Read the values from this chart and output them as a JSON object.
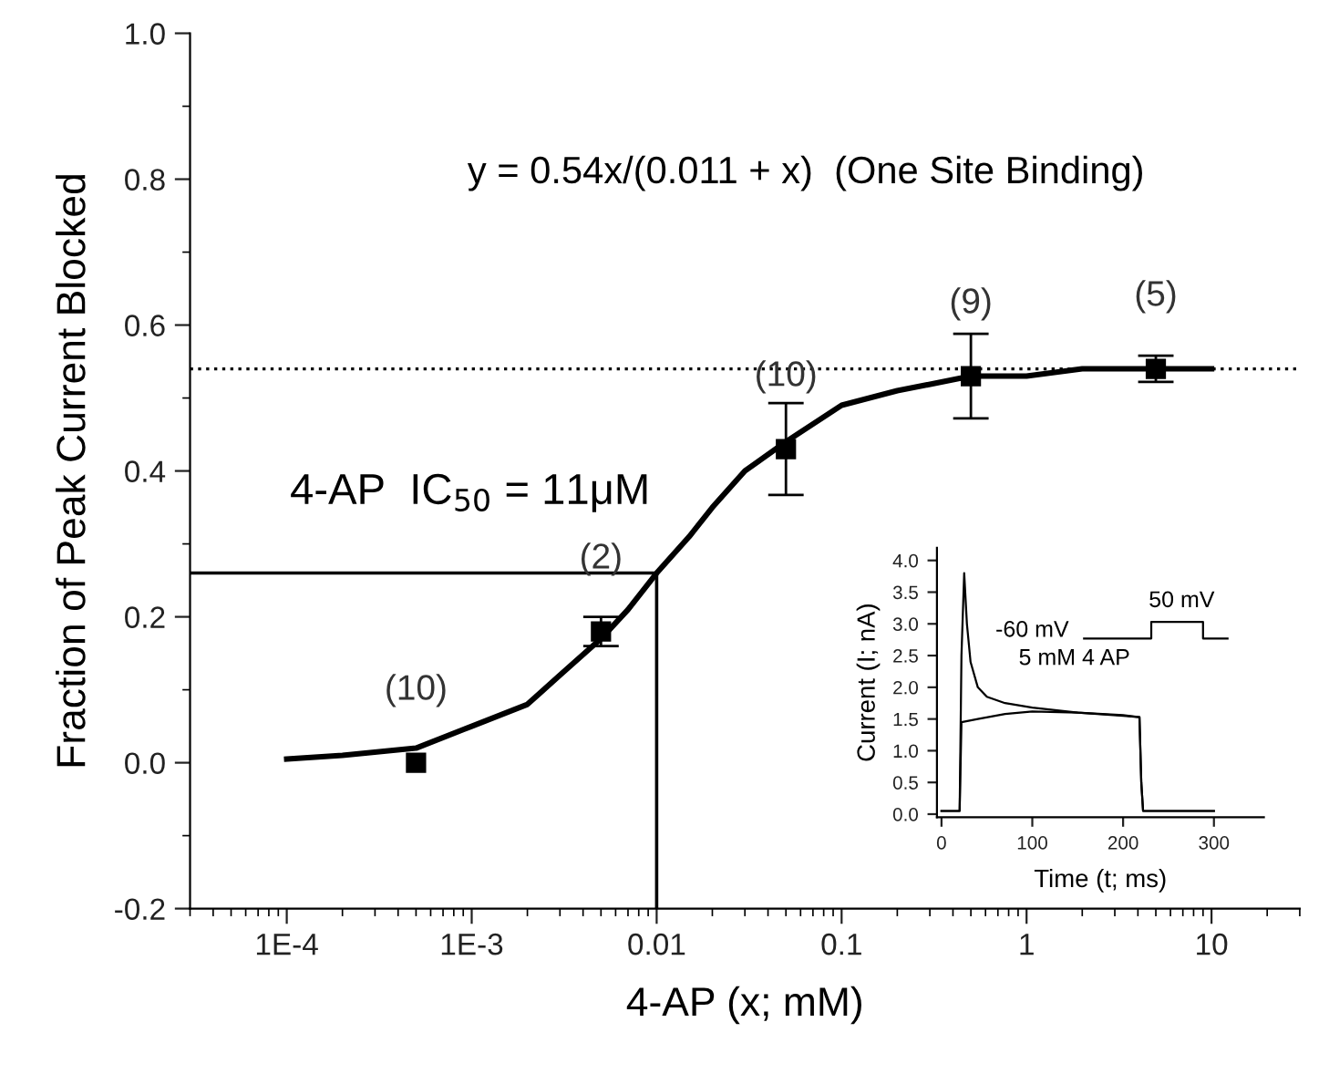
{
  "chart_data": [
    {
      "type": "scatter",
      "xlabel": "4-AP (x; mM)",
      "ylabel": "Fraction of Peak Current Blocked",
      "log": "x",
      "xlim": [
        3e-05,
        30
      ],
      "ylim": [
        -0.2,
        1.0
      ],
      "xticks": [
        {
          "value": 0.0001,
          "label": "1E-4"
        },
        {
          "value": 0.001,
          "label": "1E-3"
        },
        0.01,
        0.1,
        1,
        10
      ],
      "yticks": [
        {
          "value": -0.2,
          "label": "-0.2"
        },
        {
          "value": 0,
          "label": "0.0"
        },
        0.2,
        0.4,
        0.6,
        0.8,
        {
          "value": 1,
          "label": "1.0"
        }
      ],
      "grid": false,
      "legend": false,
      "series": [
        {
          "type": "scatter",
          "marker": "square",
          "color": "#000000",
          "x": [
            0.0005,
            0.005,
            0.05,
            0.5,
            5
          ],
          "values": [
            0.0,
            0.18,
            0.43,
            0.53,
            0.54
          ],
          "errors": [
            null,
            0.02,
            0.063,
            0.058,
            0.018
          ]
        },
        {
          "type": "line",
          "marker": "none",
          "line_style": "solid",
          "color": "#000000",
          "x": [
            0.0001,
            0.0002,
            0.0005,
            0.001,
            0.002,
            0.003,
            0.005,
            0.007,
            0.01,
            0.015,
            0.02,
            0.03,
            0.05,
            0.1,
            0.2,
            0.5,
            1,
            2,
            5,
            10
          ],
          "values": [
            0.005,
            0.01,
            0.02,
            0.05,
            0.08,
            0.12,
            0.17,
            0.21,
            0.26,
            0.31,
            0.35,
            0.4,
            0.44,
            0.49,
            0.51,
            0.53,
            0.53,
            0.54,
            0.54,
            0.54
          ]
        },
        {
          "type": "line",
          "marker": "none",
          "line_style": "solid",
          "color": "#000000",
          "x": [
            3e-05,
            0.01,
            0.01
          ],
          "values": [
            0.26,
            0.26,
            -0.2
          ]
        }
      ],
      "ref_lines": [
        {
          "axis": "y",
          "value": 0.54,
          "line_style": "dotted",
          "color": "#000000"
        }
      ],
      "annotations": [
        "y = 0.54x/(0.011 + x)  (One Site Binding)",
        "4-AP  IC$_{50}$ = 11μM",
        {
          "text": "(10)",
          "x": 0.0005,
          "y": 0.0
        },
        {
          "text": "(2)",
          "x": 0.005,
          "y": 0.18
        },
        {
          "text": "(10)",
          "x": 0.05,
          "y": 0.43
        },
        {
          "text": "(9)",
          "x": 0.5,
          "y": 0.53
        },
        {
          "text": "(5)",
          "x": 5,
          "y": 0.54
        }
      ]
    },
    {
      "type": "line",
      "xlabel": "Time (t; ms)",
      "ylabel": "Current (I; nA)",
      "xlim": [
        -5,
        355
      ],
      "ylim": [
        -0.05,
        4.2
      ],
      "xticks": [
        0,
        100,
        200,
        300
      ],
      "yticks": [
        {
          "value": 0,
          "label": "0.0"
        },
        0.5,
        {
          "value": 1,
          "label": "1.0"
        },
        1.5,
        {
          "value": 2,
          "label": "2.0"
        },
        2.5,
        {
          "value": 3,
          "label": "3.0"
        },
        3.5,
        {
          "value": 4,
          "label": "4.0"
        }
      ],
      "grid": false,
      "legend": false,
      "series": [
        {
          "color": "#000000",
          "x": [
            0,
            20,
            22,
            25,
            28,
            32,
            40,
            50,
            70,
            100,
            150,
            200,
            218,
            220,
            222,
            300
          ],
          "values": [
            0.05,
            0.05,
            2.5,
            3.8,
            3.0,
            2.4,
            2.0,
            1.85,
            1.75,
            1.68,
            1.6,
            1.55,
            1.53,
            0.5,
            0.05,
            0.05
          ]
        },
        {
          "color": "#000000",
          "x": [
            0,
            20,
            22,
            40,
            70,
            100,
            150,
            200,
            218,
            220,
            222,
            300
          ],
          "values": [
            0.05,
            0.05,
            1.45,
            1.5,
            1.58,
            1.62,
            1.6,
            1.56,
            1.53,
            0.5,
            0.05,
            0.05
          ]
        },
        {
          "color": "#000000",
          "x": [
            157,
            231,
            231,
            288,
            288,
            315
          ],
          "values": [
            2.77,
            2.77,
            3.03,
            3.03,
            2.77,
            2.77
          ]
        }
      ],
      "annotations": [
        {
          "text": "5 mM 4 AP",
          "x": 85,
          "y": 1.72
        },
        {
          "text": "50 mV",
          "x": 231,
          "y": 3.03
        },
        {
          "text": "-60 mV",
          "x": 157,
          "y": 2.77
        }
      ]
    }
  ]
}
